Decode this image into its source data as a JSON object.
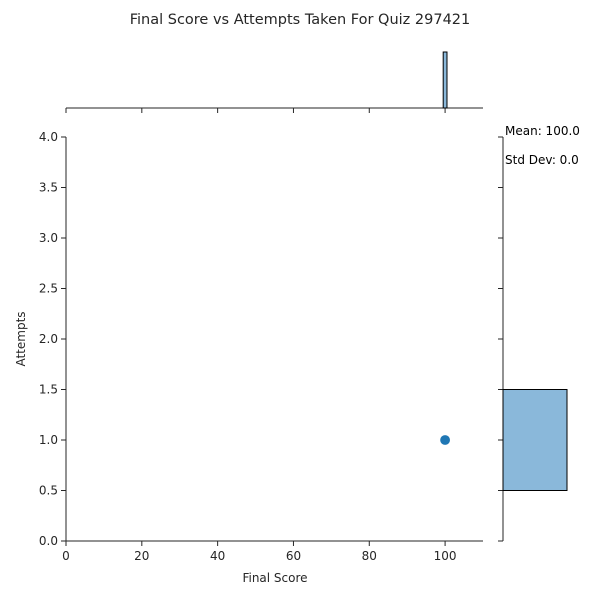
{
  "chart_data": {
    "type": "scatter",
    "title": "Final Score vs Attempts Taken For Quiz 297421",
    "xlabel": "Final Score",
    "ylabel": "Attempts",
    "xlim": [
      0,
      110
    ],
    "ylim": [
      0,
      4
    ],
    "xticks": [
      0,
      20,
      40,
      60,
      80,
      100
    ],
    "yticks": [
      0.0,
      0.5,
      1.0,
      1.5,
      2.0,
      2.5,
      3.0,
      3.5,
      4.0
    ],
    "points": [
      {
        "x": 100,
        "y": 1
      }
    ],
    "grid": false,
    "marginal_x_histogram": {
      "bins": [
        {
          "from": 99.5,
          "to": 100.5,
          "count": 1
        }
      ]
    },
    "marginal_y_histogram": {
      "bins": [
        {
          "from": 0.5,
          "to": 1.5,
          "count": 1
        }
      ]
    },
    "annotations": {
      "mean": "Mean: 100.0",
      "std": "Std Dev: 0.0"
    },
    "colors": {
      "point": "#1f77b4",
      "hist_fill": "#8ab8da",
      "hist_edge": "#000000",
      "axis": "#262626"
    }
  }
}
